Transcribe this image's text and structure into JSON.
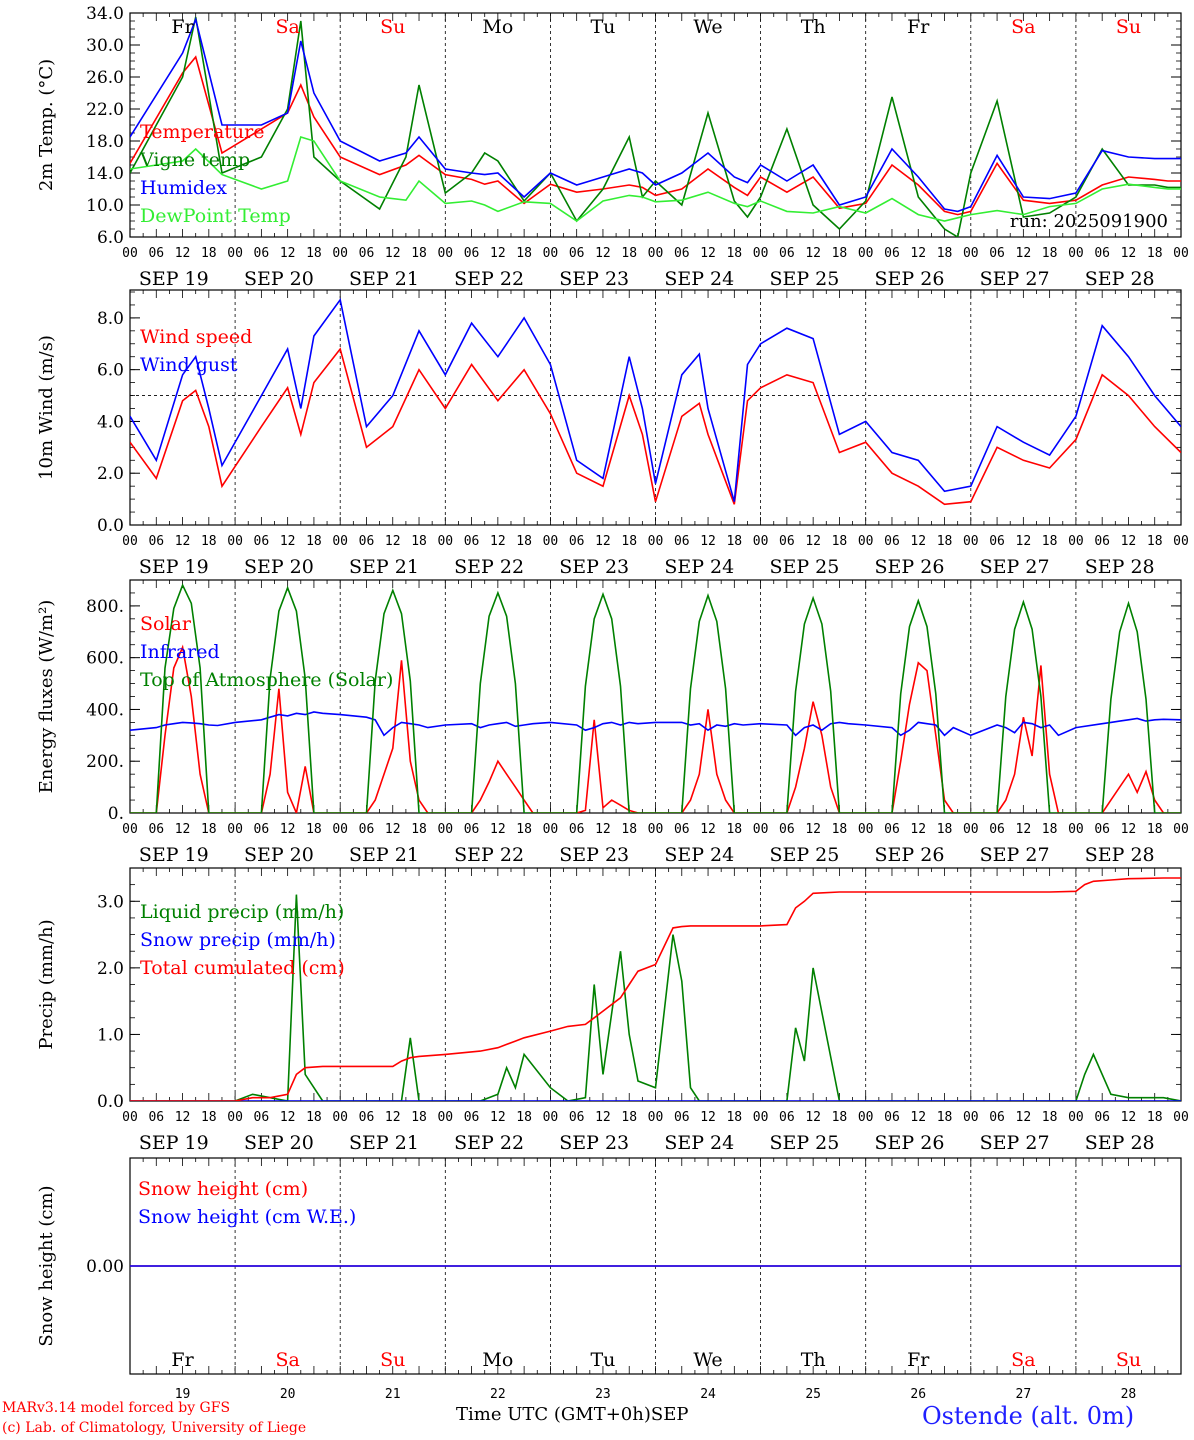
{
  "footer": {
    "model_line": "MARv3.14 model forced by GFS",
    "credit_line": "(c) Lab. of Climatology, University of Liege",
    "xaxis_title": "Time UTC (GMT+0h)",
    "month": "SEP",
    "station": "Ostende (alt. 0m)"
  },
  "colors": {
    "red": "#ff0000",
    "green": "#008000",
    "blue": "#0000ff",
    "lime": "#33ee33",
    "weekend": "#ff0000",
    "weekday": "#000000"
  },
  "shared_axis": {
    "days": [
      "SEP 19",
      "SEP 20",
      "SEP 21",
      "SEP 22",
      "SEP 23",
      "SEP 24",
      "SEP 25",
      "SEP 26",
      "SEP 27",
      "SEP 28"
    ],
    "weekdays": [
      "Fr",
      "Sa",
      "Su",
      "Mo",
      "Tu",
      "We",
      "Th",
      "Fr",
      "Sa",
      "Su"
    ],
    "weekend_flags": [
      false,
      true,
      true,
      false,
      false,
      false,
      false,
      false,
      true,
      true
    ],
    "day_numbers": [
      "19",
      "20",
      "21",
      "22",
      "23",
      "24",
      "25",
      "26",
      "27",
      "28"
    ],
    "hour_labels": [
      "00",
      "06",
      "12",
      "18"
    ],
    "end_label": "00"
  },
  "chart_data": [
    {
      "type": "line",
      "ylabel": "2m Temp. (°C)",
      "ylim": [
        6.0,
        34.0
      ],
      "yticks": [
        "6.0",
        "10.0",
        "14.0",
        "18.0",
        "22.0",
        "26.0",
        "30.0",
        "34.0"
      ],
      "annotation": "run: 2025091900",
      "x_hours": [
        0,
        12,
        15,
        21,
        30,
        36,
        39,
        42,
        48,
        57,
        63,
        66,
        72,
        78,
        81,
        84,
        90,
        96,
        102,
        108,
        114,
        117,
        120,
        126,
        132,
        138,
        141,
        144,
        150,
        156,
        162,
        168,
        174,
        180,
        186,
        189,
        192,
        198,
        204,
        210,
        216,
        222,
        228,
        234,
        237,
        240
      ],
      "series": [
        {
          "name": "Temperature",
          "color": "red",
          "values": [
            15.2,
            26.5,
            28.5,
            16.5,
            19.5,
            21.5,
            25.0,
            21.0,
            16.0,
            13.8,
            15.0,
            16.2,
            13.8,
            13.2,
            12.6,
            13.0,
            10.2,
            12.6,
            11.6,
            12.0,
            12.5,
            12.2,
            11.2,
            12.0,
            14.5,
            12.2,
            11.2,
            13.5,
            11.6,
            13.5,
            9.6,
            10.2,
            15.0,
            12.5,
            9.2,
            8.8,
            9.2,
            15.2,
            10.6,
            10.2,
            10.6,
            12.5,
            13.5,
            13.2,
            13.0,
            13.0
          ]
        },
        {
          "name": "Vigne temp",
          "color": "green",
          "values": [
            14.0,
            26.0,
            33.5,
            14.0,
            16.0,
            22.0,
            33.0,
            16.0,
            13.0,
            9.5,
            16.0,
            25.0,
            11.5,
            14.0,
            16.5,
            15.5,
            10.5,
            14.0,
            8.0,
            12.0,
            18.5,
            11.0,
            13.0,
            10.0,
            21.5,
            10.5,
            8.5,
            11.0,
            19.5,
            10.0,
            7.0,
            10.5,
            23.5,
            11.0,
            7.0,
            6.0,
            14.0,
            23.0,
            8.5,
            9.0,
            11.0,
            17.0,
            12.5,
            12.5,
            12.2,
            12.2
          ]
        },
        {
          "name": "Humidex",
          "color": "blue",
          "values": [
            18.5,
            29.0,
            33.2,
            20.0,
            20.0,
            21.5,
            30.5,
            24.0,
            18.0,
            15.5,
            16.5,
            18.5,
            14.5,
            14.0,
            13.8,
            14.0,
            11.0,
            14.0,
            12.5,
            13.5,
            14.5,
            14.0,
            12.5,
            14.0,
            16.5,
            13.5,
            12.8,
            15.0,
            13.0,
            15.0,
            10.0,
            11.0,
            17.0,
            13.5,
            9.5,
            9.2,
            9.8,
            16.2,
            11.0,
            10.8,
            11.5,
            16.8,
            16.0,
            15.8,
            15.8,
            15.8
          ]
        },
        {
          "name": "DewPoint Temp",
          "color": "lime",
          "values": [
            14.5,
            15.5,
            17.0,
            13.8,
            12.0,
            13.0,
            18.5,
            18.0,
            13.0,
            11.0,
            10.6,
            13.0,
            10.2,
            10.5,
            10.0,
            9.2,
            10.4,
            10.2,
            8.0,
            10.5,
            11.2,
            11.0,
            10.4,
            10.6,
            11.6,
            10.2,
            9.8,
            10.5,
            9.2,
            9.0,
            9.8,
            9.0,
            10.8,
            8.8,
            8.0,
            8.4,
            8.8,
            9.3,
            8.8,
            9.8,
            10.2,
            12.0,
            12.6,
            12.2,
            12.0,
            12.0
          ]
        }
      ]
    },
    {
      "type": "line",
      "ylabel": "10m Wind (m/s)",
      "ylim": [
        0.0,
        9.0
      ],
      "yticks": [
        "0.0",
        "2.0",
        "4.0",
        "6.0",
        "8.0"
      ],
      "reference_line": 5.0,
      "x_hours": [
        0,
        6,
        12,
        15,
        18,
        21,
        30,
        36,
        39,
        42,
        48,
        54,
        60,
        66,
        72,
        78,
        84,
        90,
        96,
        102,
        108,
        114,
        117,
        120,
        126,
        130,
        132,
        138,
        141,
        144,
        150,
        156,
        162,
        168,
        174,
        180,
        186,
        192,
        198,
        204,
        210,
        216,
        222,
        228,
        234,
        240
      ],
      "series": [
        {
          "name": "Wind speed",
          "color": "red",
          "values": [
            3.2,
            1.8,
            4.8,
            5.2,
            3.8,
            1.5,
            3.8,
            5.3,
            3.5,
            5.5,
            6.8,
            3.0,
            3.8,
            6.0,
            4.5,
            6.2,
            4.8,
            6.0,
            4.3,
            2.0,
            1.5,
            5.0,
            3.5,
            0.9,
            4.2,
            4.7,
            3.5,
            0.8,
            4.8,
            5.3,
            5.8,
            5.5,
            2.8,
            3.2,
            2.0,
            1.5,
            0.8,
            0.9,
            3.0,
            2.5,
            2.2,
            3.3,
            5.8,
            5.0,
            3.8,
            2.8
          ]
        },
        {
          "name": "Wind gust",
          "color": "blue",
          "values": [
            4.2,
            2.5,
            5.8,
            6.5,
            4.5,
            2.3,
            5.0,
            6.8,
            4.5,
            7.3,
            8.7,
            3.8,
            5.0,
            7.5,
            5.8,
            7.8,
            6.5,
            8.0,
            6.2,
            2.5,
            1.8,
            6.5,
            4.5,
            1.6,
            5.8,
            6.6,
            4.5,
            0.9,
            6.2,
            7.0,
            7.6,
            7.2,
            3.5,
            4.0,
            2.8,
            2.5,
            1.3,
            1.5,
            3.8,
            3.2,
            2.7,
            4.2,
            7.7,
            6.5,
            5.0,
            3.8
          ]
        }
      ]
    },
    {
      "type": "line",
      "ylabel": "Energy fluxes (W/m²)",
      "ylim": [
        0,
        900
      ],
      "yticks": [
        "0.",
        "200.",
        "400.",
        "600.",
        "800."
      ],
      "x_hours": [
        0,
        6,
        8,
        10,
        12,
        14,
        16,
        18,
        20,
        24,
        30,
        32,
        34,
        36,
        38,
        40,
        42,
        44,
        48,
        54,
        56,
        58,
        60,
        62,
        64,
        66,
        68,
        72,
        78,
        80,
        82,
        84,
        86,
        88,
        90,
        92,
        96,
        102,
        104,
        106,
        108,
        110,
        112,
        114,
        116,
        120,
        126,
        128,
        130,
        132,
        134,
        136,
        138,
        140,
        144,
        150,
        152,
        154,
        156,
        158,
        160,
        162,
        164,
        168,
        174,
        176,
        178,
        180,
        182,
        184,
        186,
        188,
        192,
        198,
        200,
        202,
        204,
        206,
        208,
        210,
        212,
        216,
        222,
        224,
        226,
        228,
        230,
        232,
        234,
        236,
        240
      ],
      "series": [
        {
          "name": "Solar",
          "color": "red",
          "values": [
            0,
            0,
            300,
            560,
            640,
            450,
            150,
            0,
            0,
            0,
            0,
            150,
            480,
            80,
            0,
            180,
            0,
            0,
            0,
            0,
            50,
            150,
            250,
            590,
            200,
            50,
            0,
            0,
            0,
            50,
            120,
            200,
            150,
            100,
            50,
            0,
            0,
            0,
            10,
            360,
            20,
            50,
            30,
            10,
            0,
            0,
            0,
            50,
            150,
            400,
            150,
            50,
            0,
            0,
            0,
            0,
            100,
            250,
            430,
            300,
            100,
            0,
            0,
            0,
            0,
            200,
            420,
            580,
            550,
            300,
            50,
            0,
            0,
            0,
            50,
            150,
            370,
            220,
            570,
            150,
            0,
            0,
            0,
            50,
            100,
            150,
            80,
            160,
            50,
            0,
            0
          ]
        },
        {
          "name": "Infrared",
          "color": "blue",
          "values": [
            320,
            330,
            340,
            345,
            350,
            348,
            345,
            340,
            338,
            350,
            360,
            370,
            380,
            375,
            385,
            380,
            390,
            385,
            380,
            370,
            360,
            300,
            330,
            350,
            345,
            340,
            330,
            340,
            345,
            330,
            340,
            345,
            350,
            335,
            340,
            345,
            350,
            340,
            320,
            330,
            345,
            350,
            340,
            350,
            345,
            350,
            350,
            340,
            345,
            320,
            340,
            335,
            345,
            340,
            345,
            340,
            300,
            330,
            340,
            320,
            345,
            350,
            345,
            340,
            330,
            300,
            320,
            350,
            345,
            340,
            300,
            330,
            300,
            340,
            330,
            310,
            350,
            345,
            330,
            340,
            300,
            330,
            345,
            350,
            355,
            360,
            365,
            355,
            360,
            362,
            360
          ]
        },
        {
          "name": "Top of Atmosphere (Solar)",
          "color": "green",
          "values": [
            0,
            0,
            560,
            790,
            880,
            810,
            560,
            0,
            0,
            0,
            0,
            520,
            780,
            870,
            780,
            520,
            0,
            0,
            0,
            0,
            510,
            770,
            860,
            770,
            510,
            0,
            0,
            0,
            0,
            500,
            760,
            850,
            760,
            500,
            0,
            0,
            0,
            0,
            490,
            750,
            845,
            750,
            490,
            0,
            0,
            0,
            0,
            480,
            740,
            840,
            740,
            480,
            0,
            0,
            0,
            0,
            470,
            730,
            830,
            730,
            470,
            0,
            0,
            0,
            0,
            460,
            720,
            820,
            720,
            460,
            0,
            0,
            0,
            0,
            450,
            710,
            815,
            710,
            450,
            0,
            0,
            0,
            0,
            440,
            700,
            810,
            700,
            440,
            0,
            0,
            0
          ]
        }
      ]
    },
    {
      "type": "line",
      "ylabel": "Precip (mm/h)",
      "ylim": [
        0.0,
        3.5
      ],
      "yticks": [
        "0.0",
        "1.0",
        "2.0",
        "3.0"
      ],
      "x_hours": [
        0,
        24,
        28,
        32,
        36,
        38,
        40,
        44,
        48,
        60,
        62,
        64,
        66,
        72,
        80,
        84,
        86,
        88,
        90,
        96,
        100,
        104,
        106,
        108,
        112,
        114,
        116,
        120,
        124,
        126,
        128,
        130,
        132,
        138,
        144,
        150,
        152,
        154,
        156,
        162,
        168,
        174,
        180,
        186,
        204,
        210,
        216,
        218,
        220,
        224,
        228,
        236,
        240
      ],
      "series": [
        {
          "name": "Liquid precip (mm/h)",
          "color": "green",
          "values": [
            0,
            0,
            0.1,
            0.05,
            0,
            3.1,
            0.4,
            0,
            0,
            0,
            0,
            0.95,
            0,
            0,
            0,
            0.1,
            0.5,
            0.2,
            0.7,
            0.2,
            0,
            0.05,
            1.75,
            0.4,
            2.25,
            1.0,
            0.3,
            0.2,
            2.5,
            1.8,
            0.2,
            0,
            0,
            0,
            0,
            0,
            1.1,
            0.6,
            2.0,
            0,
            0,
            0,
            0,
            0,
            0,
            0,
            0,
            0.4,
            0.7,
            0.1,
            0.05,
            0.05,
            0
          ]
        },
        {
          "name": "Snow precip (mm/h)",
          "color": "blue",
          "values": [
            0,
            0,
            0,
            0,
            0,
            0,
            0,
            0,
            0,
            0,
            0,
            0,
            0,
            0,
            0,
            0,
            0,
            0,
            0,
            0,
            0,
            0,
            0,
            0,
            0,
            0,
            0,
            0,
            0,
            0,
            0,
            0,
            0,
            0,
            0,
            0,
            0,
            0,
            0,
            0,
            0,
            0,
            0,
            0,
            0,
            0,
            0,
            0,
            0,
            0,
            0,
            0,
            0
          ]
        },
        {
          "name": "Total cumulated (cm)",
          "color": "red",
          "values": [
            0,
            0,
            0.05,
            0.05,
            0.1,
            0.4,
            0.5,
            0.52,
            0.52,
            0.52,
            0.6,
            0.65,
            0.67,
            0.7,
            0.75,
            0.8,
            0.85,
            0.9,
            0.95,
            1.05,
            1.12,
            1.15,
            1.25,
            1.35,
            1.55,
            1.75,
            1.95,
            2.05,
            2.6,
            2.62,
            2.63,
            2.63,
            2.63,
            2.63,
            2.63,
            2.65,
            2.9,
            3.0,
            3.12,
            3.14,
            3.14,
            3.14,
            3.14,
            3.14,
            3.14,
            3.14,
            3.15,
            3.25,
            3.3,
            3.32,
            3.34,
            3.35,
            3.35
          ]
        }
      ]
    },
    {
      "type": "line",
      "ylabel": "Snow height (cm)",
      "ylim": [
        -1.0,
        1.0
      ],
      "yticks": [
        "0.00"
      ],
      "x_hours": [
        0,
        240
      ],
      "series": [
        {
          "name": "Snow height (cm)",
          "color": "red",
          "values": [
            0,
            0
          ]
        },
        {
          "name": "Snow height (cm W.E.)",
          "color": "blue",
          "values": [
            0,
            0
          ]
        }
      ]
    }
  ]
}
